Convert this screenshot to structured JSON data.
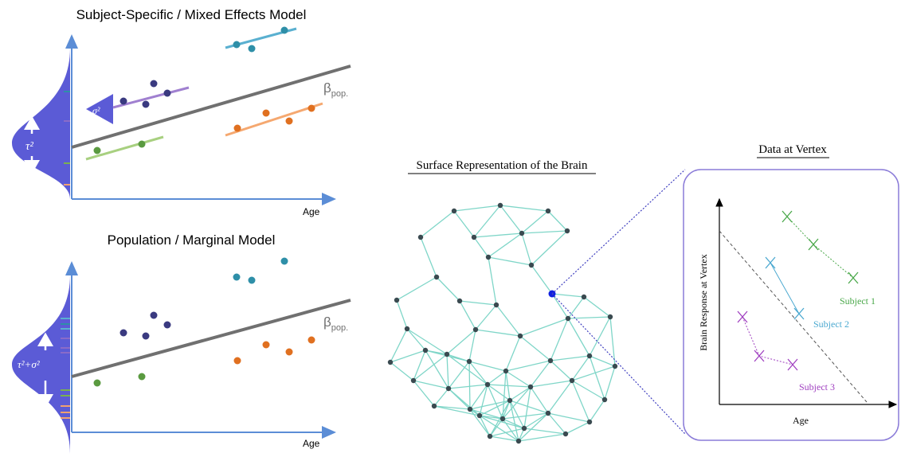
{
  "top_panel": {
    "title": "Subject-Specific / Mixed Effects Model",
    "beta": "β",
    "beta_subscript": "pop.",
    "x_label": "Age",
    "sigma_label": "σ²",
    "tau_label": "τ²"
  },
  "bottom_panel": {
    "title": "Population / Marginal Model",
    "beta": "β",
    "beta_subscript": "pop.",
    "x_label": "Age",
    "variance_label": "τ²+σ²"
  },
  "brain": {
    "title": "Surface Representation of the Brain"
  },
  "vertex_plot": {
    "title": "Data at Vertex",
    "y_label": "Brain Response at Vertex",
    "x_label": "Age",
    "subjects": [
      "Subject 1",
      "Subject 2",
      "Subject 3"
    ]
  }
}
